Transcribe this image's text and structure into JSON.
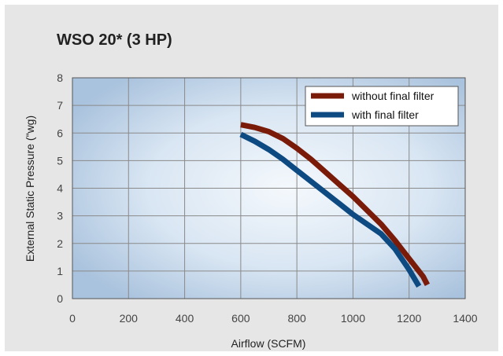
{
  "chart_data": {
    "type": "line",
    "title": "WSO 20* (3 HP)",
    "xlabel": "Airflow (SCFM)",
    "ylabel": "External Static Pressure (\"wg)",
    "xlim": [
      0,
      1400
    ],
    "ylim": [
      0,
      8
    ],
    "xticks": [
      "0",
      "200",
      "400",
      "600",
      "800",
      "1000",
      "1200",
      "1400"
    ],
    "yticks": [
      "0",
      "1",
      "2",
      "3",
      "4",
      "5",
      "6",
      "7",
      "8"
    ],
    "grid": true,
    "legend_position": "top-right",
    "series": [
      {
        "name": "without final filter",
        "color": "#7a1a08",
        "x": [
          600,
          650,
          700,
          750,
          800,
          850,
          900,
          950,
          1000,
          1050,
          1100,
          1150,
          1200,
          1250,
          1265
        ],
        "y": [
          6.3,
          6.2,
          6.05,
          5.8,
          5.45,
          5.05,
          4.6,
          4.15,
          3.7,
          3.2,
          2.7,
          2.1,
          1.45,
          0.8,
          0.5
        ]
      },
      {
        "name": "with final filter",
        "color": "#0d4a82",
        "x": [
          600,
          650,
          700,
          750,
          800,
          850,
          900,
          950,
          1000,
          1050,
          1100,
          1150,
          1200,
          1235
        ],
        "y": [
          5.95,
          5.7,
          5.4,
          5.05,
          4.65,
          4.25,
          3.85,
          3.45,
          3.05,
          2.7,
          2.35,
          1.8,
          1.05,
          0.45
        ]
      }
    ]
  }
}
